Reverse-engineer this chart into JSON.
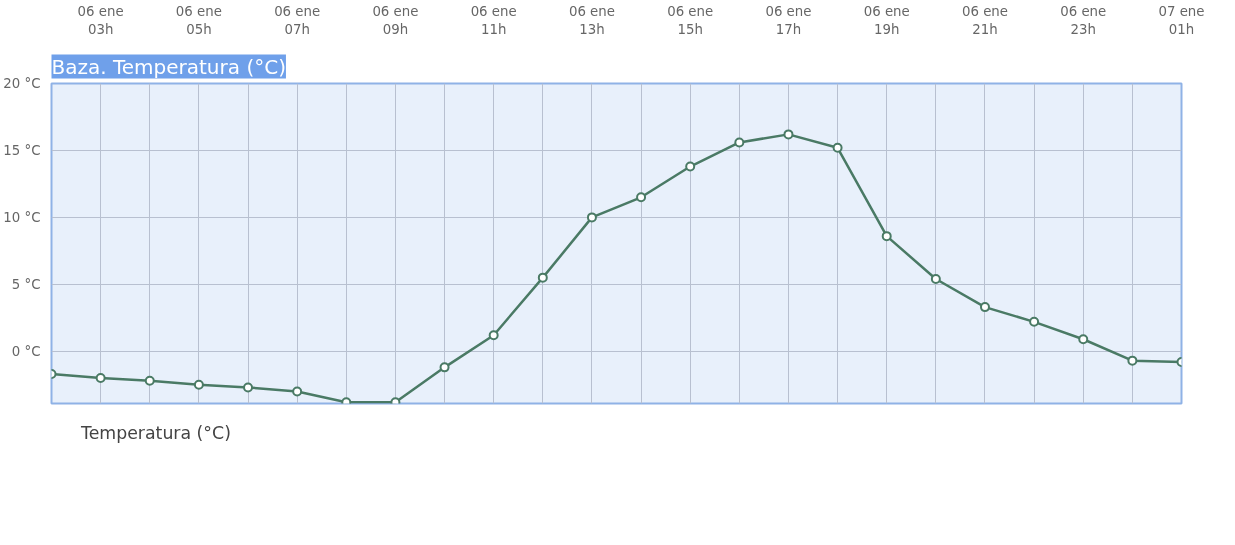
{
  "chart_data": {
    "type": "line",
    "title": "Baza. Temperatura (°C)",
    "categories": [
      null,
      "06 ene\n03h",
      null,
      "06 ene\n05h",
      null,
      "06 ene\n07h",
      null,
      "06 ene\n09h",
      null,
      "06 ene\n11h",
      null,
      "06 ene\n13h",
      null,
      "06 ene\n15h",
      null,
      "06 ene\n17h",
      null,
      "06 ene\n19h",
      null,
      "06 ene\n21h",
      null,
      "06 ene\n23h",
      null,
      "07 ene\n01h"
    ],
    "series": [
      {
        "name": "Temperatura (°C)",
        "color": "#4a7a65",
        "values": [
          -1.7,
          -2.0,
          -2.2,
          -2.5,
          -2.7,
          -3.0,
          -3.8,
          -3.8,
          -1.2,
          1.2,
          5.5,
          10.0,
          11.5,
          13.8,
          15.6,
          16.2,
          15.2,
          8.6,
          5.4,
          3.3,
          2.2,
          0.9,
          -0.7,
          -0.8
        ]
      }
    ],
    "ylim": [
      -3.9,
      20
    ],
    "yticks": [
      {
        "value": 0,
        "label": "0 °C"
      },
      {
        "value": 5,
        "label": "5 °C"
      },
      {
        "value": 10,
        "label": "10 °C"
      },
      {
        "value": 15,
        "label": "15 °C"
      },
      {
        "value": 20,
        "label": "20 °C"
      }
    ],
    "grid": true,
    "legend": "bottom left",
    "marker": "circle",
    "line_style": "solid"
  }
}
